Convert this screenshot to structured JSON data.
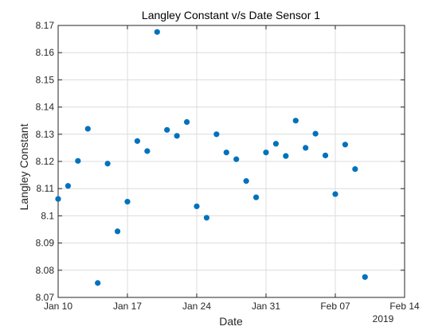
{
  "colors": {
    "marker": "#0072BD",
    "grid": "#DCDCDC",
    "axis": "#262626",
    "background": "#FFFFFF"
  },
  "chart_data": {
    "type": "scatter",
    "title": "Langley Constant v/s Date Sensor 1",
    "xlabel": "Date",
    "ylabel": "Langley Constant",
    "year_label": "2019",
    "xlim": [
      0,
      35
    ],
    "ylim": [
      8.07,
      8.17
    ],
    "grid": true,
    "x_ticks": [
      {
        "value": 0,
        "label": "Jan 10"
      },
      {
        "value": 7,
        "label": "Jan 17"
      },
      {
        "value": 14,
        "label": "Jan 24"
      },
      {
        "value": 21,
        "label": "Jan 31"
      },
      {
        "value": 28,
        "label": "Feb 07"
      },
      {
        "value": 35,
        "label": "Feb 14"
      }
    ],
    "y_ticks": [
      {
        "value": 8.07,
        "label": "8.07"
      },
      {
        "value": 8.08,
        "label": "8.08"
      },
      {
        "value": 8.09,
        "label": "8.09"
      },
      {
        "value": 8.1,
        "label": "8.1"
      },
      {
        "value": 8.11,
        "label": "8.11"
      },
      {
        "value": 8.12,
        "label": "8.12"
      },
      {
        "value": 8.13,
        "label": "8.13"
      },
      {
        "value": 8.14,
        "label": "8.14"
      },
      {
        "value": 8.15,
        "label": "8.15"
      },
      {
        "value": 8.16,
        "label": "8.16"
      },
      {
        "value": 8.17,
        "label": "8.17"
      }
    ],
    "series": [
      {
        "name": "Sensor 1",
        "points": [
          {
            "date": "Jan 10",
            "x": 0,
            "y": 8.1062
          },
          {
            "date": "Jan 11",
            "x": 1,
            "y": 8.111
          },
          {
            "date": "Jan 12",
            "x": 2,
            "y": 8.1202
          },
          {
            "date": "Jan 13",
            "x": 3,
            "y": 8.132
          },
          {
            "date": "Jan 14",
            "x": 4,
            "y": 8.0753
          },
          {
            "date": "Jan 15",
            "x": 5,
            "y": 8.1192
          },
          {
            "date": "Jan 16",
            "x": 6,
            "y": 8.0943
          },
          {
            "date": "Jan 17",
            "x": 7,
            "y": 8.1052
          },
          {
            "date": "Jan 18",
            "x": 8,
            "y": 8.1275
          },
          {
            "date": "Jan 19",
            "x": 9,
            "y": 8.1238
          },
          {
            "date": "Jan 20",
            "x": 10,
            "y": 8.1676
          },
          {
            "date": "Jan 21",
            "x": 11,
            "y": 8.1316
          },
          {
            "date": "Jan 22",
            "x": 12,
            "y": 8.1294
          },
          {
            "date": "Jan 23",
            "x": 13,
            "y": 8.1345
          },
          {
            "date": "Jan 24",
            "x": 14,
            "y": 8.1035
          },
          {
            "date": "Jan 25",
            "x": 15,
            "y": 8.0993
          },
          {
            "date": "Jan 26",
            "x": 16,
            "y": 8.13
          },
          {
            "date": "Jan 27",
            "x": 17,
            "y": 8.1233
          },
          {
            "date": "Jan 28",
            "x": 18,
            "y": 8.1208
          },
          {
            "date": "Jan 29",
            "x": 19,
            "y": 8.1128
          },
          {
            "date": "Jan 30",
            "x": 20,
            "y": 8.1068
          },
          {
            "date": "Jan 31",
            "x": 21,
            "y": 8.1233
          },
          {
            "date": "Feb 01",
            "x": 22,
            "y": 8.1265
          },
          {
            "date": "Feb 02",
            "x": 23,
            "y": 8.122
          },
          {
            "date": "Feb 03",
            "x": 24,
            "y": 8.135
          },
          {
            "date": "Feb 04",
            "x": 25,
            "y": 8.125
          },
          {
            "date": "Feb 05",
            "x": 26,
            "y": 8.1302
          },
          {
            "date": "Feb 06",
            "x": 27,
            "y": 8.1222
          },
          {
            "date": "Feb 07",
            "x": 28,
            "y": 8.108
          },
          {
            "date": "Feb 08",
            "x": 29,
            "y": 8.1262
          },
          {
            "date": "Feb 09",
            "x": 30,
            "y": 8.1172
          },
          {
            "date": "Feb 10",
            "x": 31,
            "y": 8.0775
          }
        ]
      }
    ]
  }
}
